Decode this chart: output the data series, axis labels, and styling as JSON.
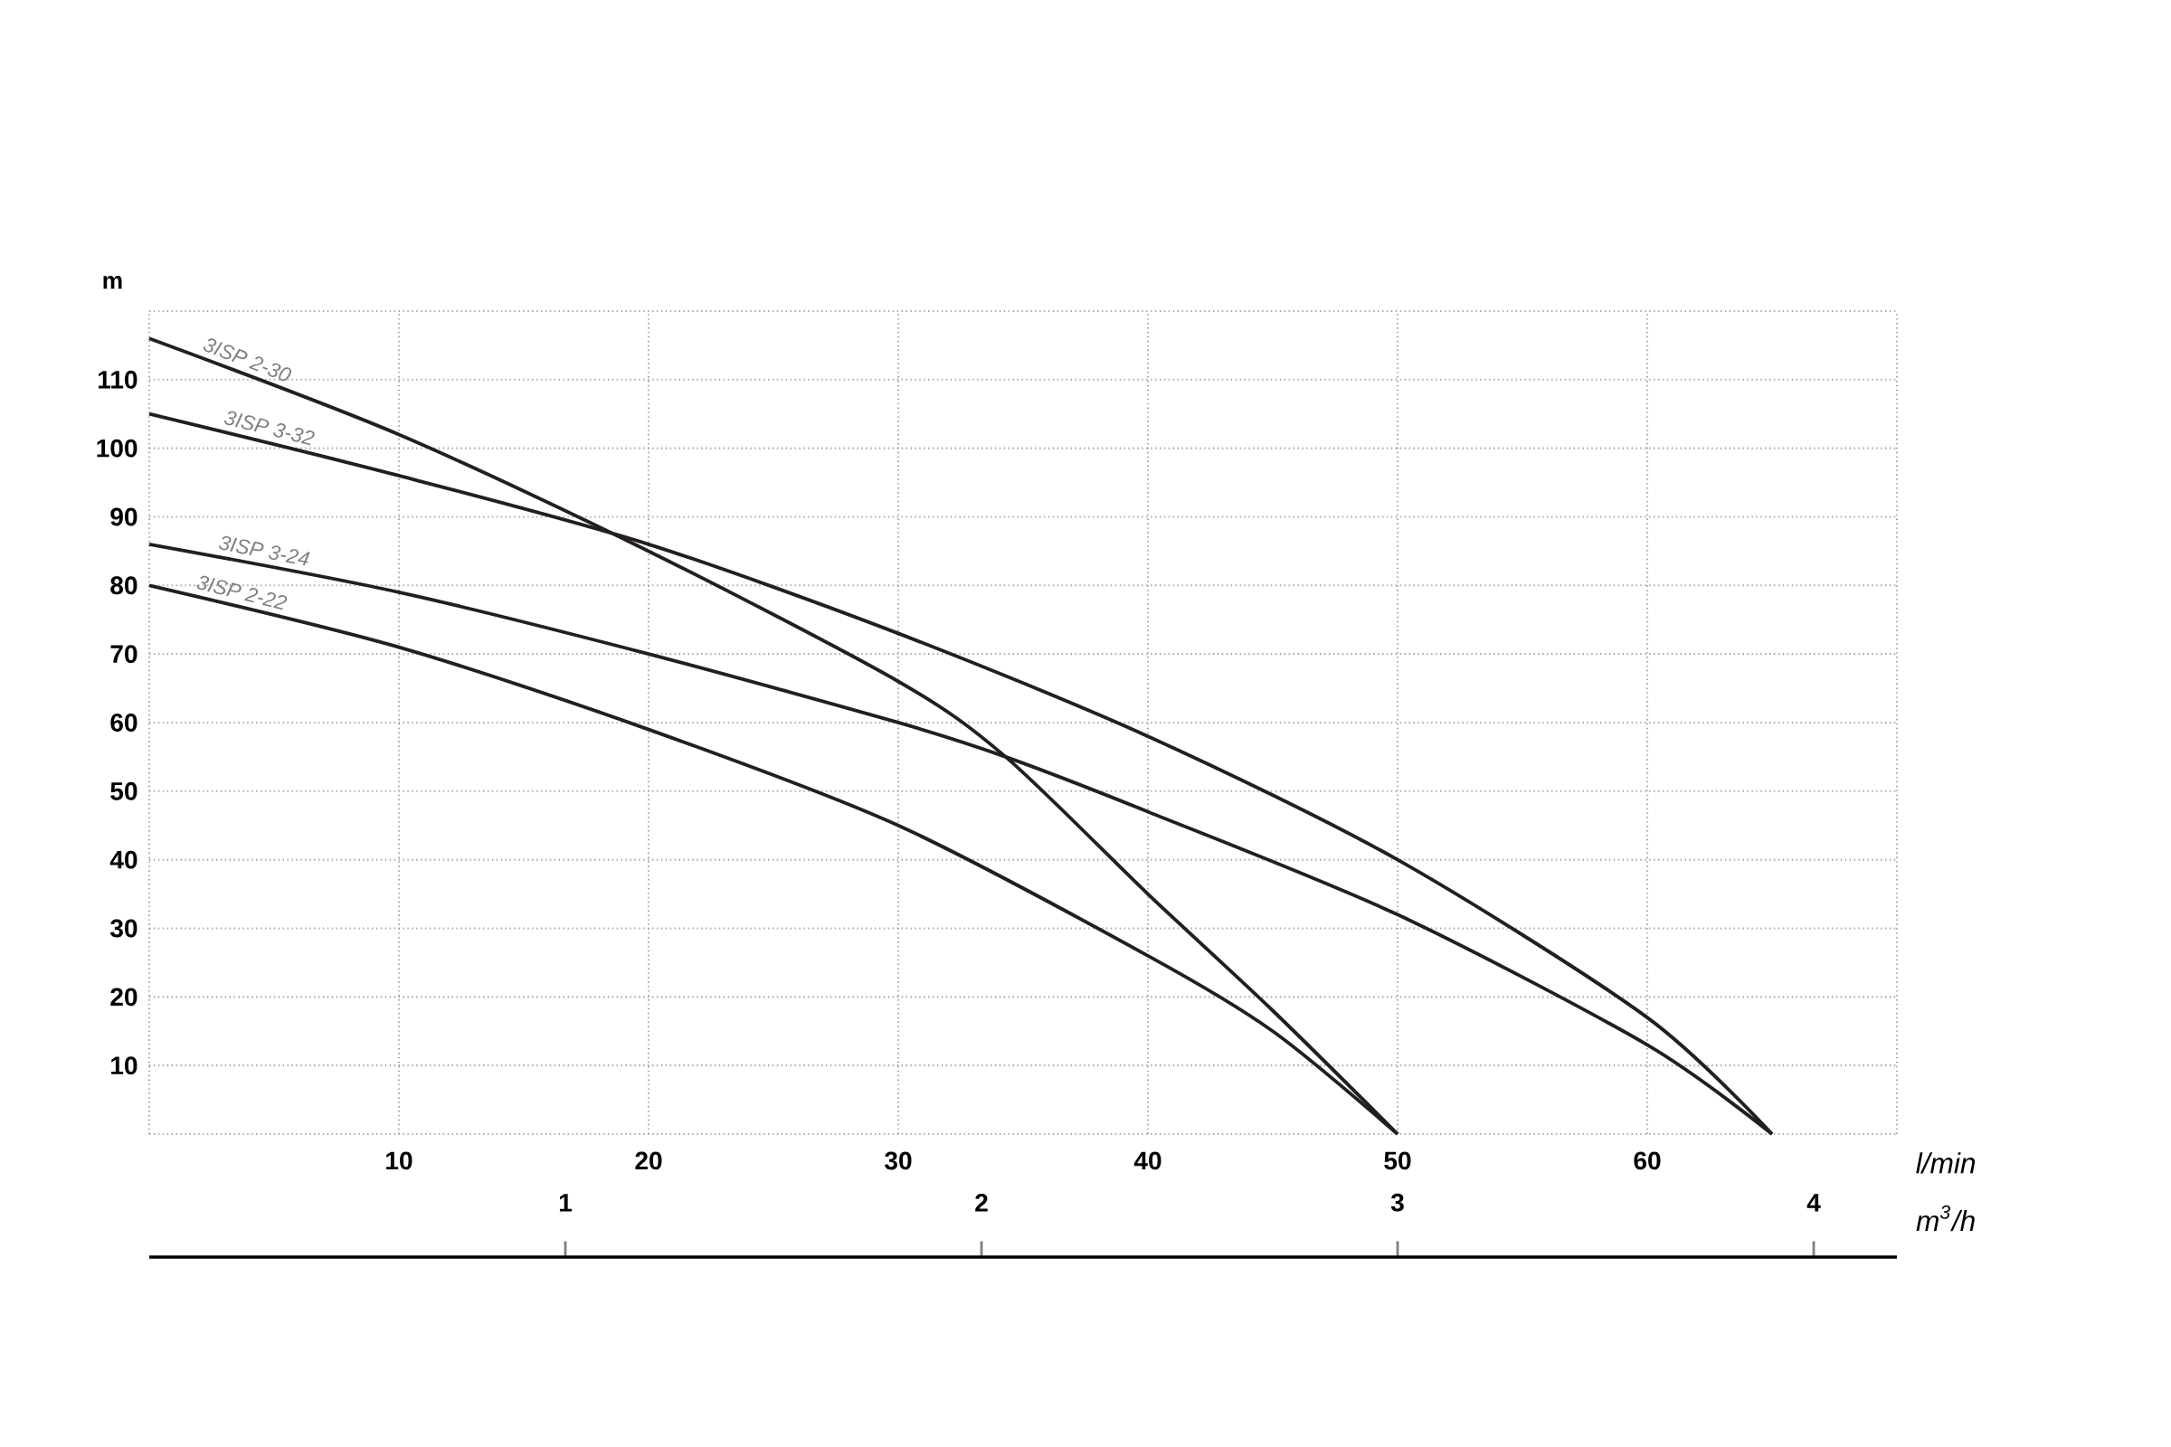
{
  "chart_data": {
    "type": "line",
    "xlabel": "l/min",
    "ylabel": "m",
    "x2label": "m$^{3}$/h",
    "xlim": [
      0,
      70
    ],
    "xticks": [
      {
        "value": 0,
        "label": null
      },
      10,
      20,
      30,
      40,
      50,
      60,
      {
        "value": 70,
        "label": null
      }
    ],
    "ylim": [
      0,
      120
    ],
    "yticks": [
      {
        "value": 0,
        "label": null
      },
      10,
      20,
      30,
      40,
      50,
      60,
      70,
      80,
      90,
      100,
      110,
      {
        "value": 120,
        "label": null
      }
    ],
    "x2lim": [
      0,
      4.2
    ],
    "x2ticks": [
      1,
      2,
      3,
      4
    ],
    "grid": true,
    "marker": "none",
    "line_style": "solid",
    "series": [
      {
        "name": "3ISP 2-30",
        "color": "#231f20",
        "x": [
          0,
          10,
          20,
          30,
          34.3,
          40,
          45,
          50
        ],
        "values": [
          116,
          102,
          85,
          66,
          55,
          35,
          18,
          0
        ]
      },
      {
        "name": "3ISP 3-32",
        "color": "#231f20",
        "x": [
          0,
          10,
          20,
          30,
          40,
          50,
          60,
          65
        ],
        "values": [
          105,
          96,
          86,
          73,
          58,
          40,
          17,
          0
        ]
      },
      {
        "name": "3ISP 3-24",
        "color": "#231f20",
        "x": [
          0,
          10,
          20,
          30,
          34.3,
          40,
          50,
          60,
          65
        ],
        "values": [
          86,
          79,
          70,
          60,
          55,
          47,
          32,
          13,
          0
        ]
      },
      {
        "name": "3ISP 2-22",
        "color": "#231f20",
        "x": [
          0,
          10,
          20,
          30,
          40,
          45,
          50
        ],
        "values": [
          80,
          71,
          59,
          45,
          26,
          15,
          0
        ]
      }
    ]
  }
}
